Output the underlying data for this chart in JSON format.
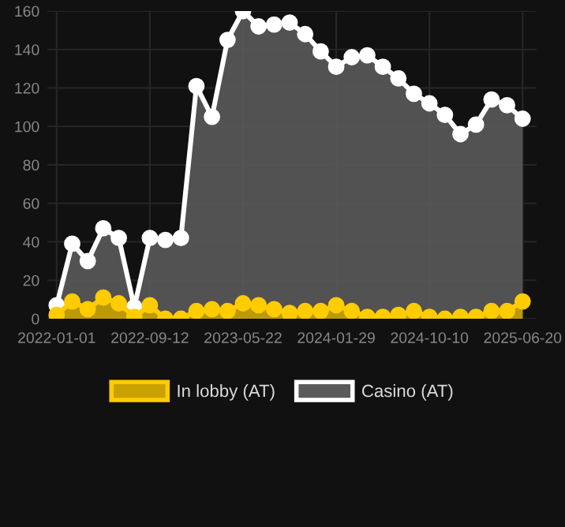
{
  "chart_data": {
    "type": "area",
    "categories": [
      "2022-01-01",
      null,
      null,
      null,
      null,
      null,
      "2022-09-12",
      null,
      null,
      null,
      null,
      null,
      "2023-05-22",
      null,
      null,
      null,
      null,
      null,
      "2024-01-29",
      null,
      null,
      null,
      null,
      null,
      "2024-10-10",
      null,
      null,
      null,
      null,
      null,
      "2025-06-20"
    ],
    "series": [
      {
        "name": "In lobby (AT)",
        "color": "#ffcc00",
        "values": [
          2,
          9,
          5,
          11,
          8,
          1,
          7,
          0,
          0,
          4,
          5,
          4,
          8,
          7,
          5,
          3,
          4,
          4,
          7,
          4,
          1,
          1,
          2,
          4,
          1,
          0,
          1,
          1,
          4,
          4,
          9
        ]
      },
      {
        "name": "Casino (AT)",
        "color": "#ffffff",
        "values": [
          7,
          39,
          30,
          47,
          42,
          6,
          42,
          41,
          42,
          121,
          105,
          145,
          160,
          152,
          153,
          154,
          148,
          139,
          131,
          136,
          137,
          131,
          125,
          117,
          112,
          106,
          96,
          101,
          114,
          111,
          104
        ]
      }
    ],
    "ylim": [
      0,
      160
    ],
    "yticks": [
      0,
      20,
      40,
      60,
      80,
      100,
      120,
      140,
      160
    ],
    "grid": true,
    "legend": "bottom",
    "marker": "circle",
    "line_style": "solid"
  }
}
